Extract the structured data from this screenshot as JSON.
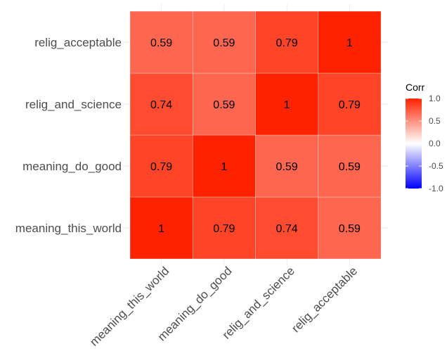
{
  "chart_data": {
    "type": "heatmap",
    "variables": [
      "meaning_this_world",
      "meaning_do_good",
      "relig_and_science",
      "relig_acceptable"
    ],
    "matrix": [
      [
        1,
        0.79,
        0.74,
        0.59
      ],
      [
        0.79,
        1,
        0.59,
        0.59
      ],
      [
        0.74,
        0.59,
        1,
        0.79
      ],
      [
        0.59,
        0.59,
        0.79,
        1
      ]
    ],
    "legend": {
      "title": "Corr",
      "ticks": [
        "1.0",
        "0.5",
        "0.0",
        "-0.5",
        "-1.0"
      ],
      "tick_values": [
        1,
        0.5,
        0,
        -0.5,
        -1
      ],
      "range": [
        -1,
        1
      ],
      "colors": {
        "low": "#0000ff",
        "mid": "#ffffff",
        "high": "#ff2200"
      }
    },
    "grid": true,
    "legend_position": "right"
  }
}
